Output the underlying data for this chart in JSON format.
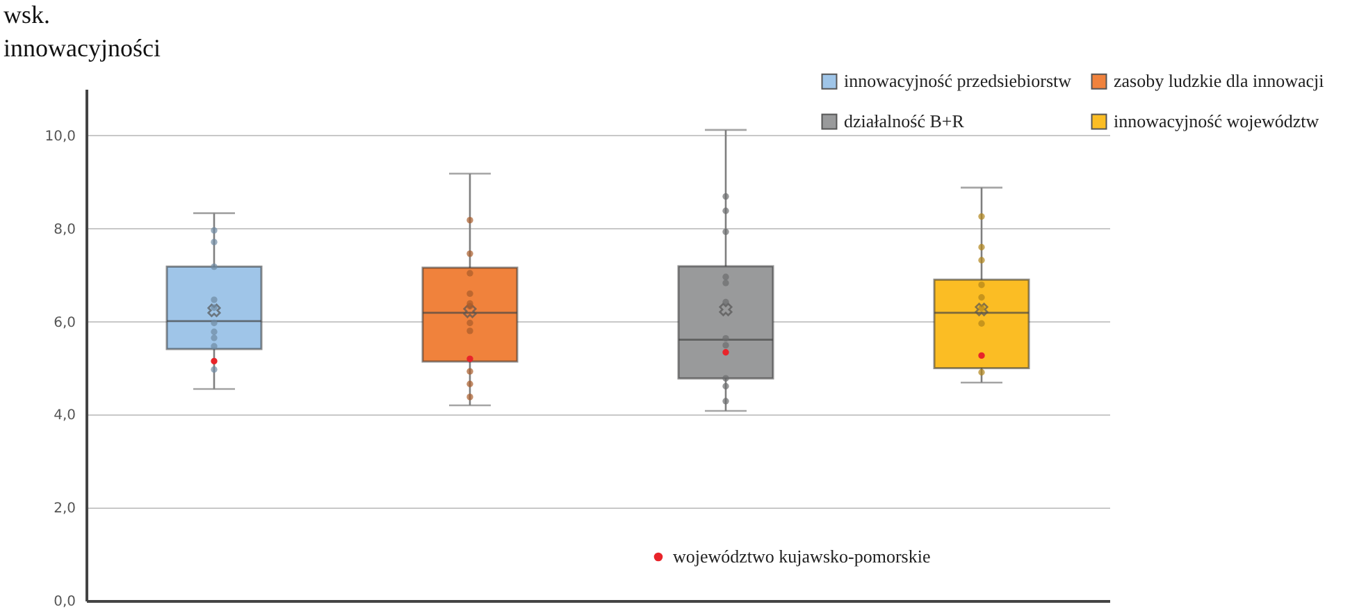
{
  "chart_data": {
    "type": "box",
    "ylabel": "wsk. innowacyjności",
    "categories": [
      null,
      null,
      null,
      null
    ],
    "series": [
      {
        "type": "box",
        "name": "innowacyjność przedsiebiorstw",
        "color": "#9fc5e8",
        "boxes": [
          {
            "low": 4.55,
            "q1": 5.41,
            "median": 6.01,
            "q3": 7.18,
            "high": 8.33,
            "mean": 6.24,
            "outliers": [
              7.96,
              7.71,
              7.18,
              6.47,
              6.3,
              5.97,
              5.78,
              5.65,
              5.47,
              4.97
            ]
          },
          null,
          null,
          null
        ]
      },
      {
        "type": "box",
        "name": "zasoby ludzkie dla innowacji",
        "color": "#f0823c",
        "boxes": [
          null,
          {
            "low": 4.2,
            "q1": 5.14,
            "median": 6.19,
            "q3": 7.16,
            "high": 9.18,
            "mean": 6.22,
            "outliers": [
              8.18,
              7.46,
              7.04,
              6.6,
              6.39,
              6.33,
              5.97,
              5.8,
              4.93,
              4.66,
              4.38
            ]
          },
          null,
          null
        ]
      },
      {
        "type": "box",
        "name": "działalność B+R",
        "color": "#999a9b",
        "boxes": [
          null,
          null,
          {
            "low": 4.08,
            "q1": 4.78,
            "median": 5.61,
            "q3": 7.19,
            "high": 10.12,
            "mean": 6.26,
            "outliers": [
              8.69,
              8.38,
              7.93,
              6.96,
              6.83,
              6.42,
              5.64,
              5.49,
              4.78,
              4.61,
              4.29
            ]
          },
          null
        ]
      },
      {
        "type": "box",
        "name": "innowacyjność województw",
        "color": "#fbbd24",
        "boxes": [
          null,
          null,
          null,
          {
            "low": 4.69,
            "q1": 5.0,
            "median": 6.19,
            "q3": 6.9,
            "high": 8.88,
            "mean": 6.26,
            "outliers": [
              8.26,
              7.6,
              7.32,
              6.79,
              6.52,
              6.29,
              5.96,
              4.91
            ]
          }
        ]
      },
      {
        "type": "scatter",
        "name": "województwo kujawsko-pomorskie",
        "color": "#e8242a",
        "values": [
          5.15,
          5.2,
          5.34,
          5.27
        ]
      }
    ],
    "ylim": [
      0,
      11
    ],
    "yticks": [
      {
        "value": 0,
        "label": "0,0"
      },
      {
        "value": 2,
        "label": "2,0"
      },
      {
        "value": 4,
        "label": "4,0"
      },
      {
        "value": 6,
        "label": "6,0"
      },
      {
        "value": 8,
        "label": "8,0"
      },
      {
        "value": 10,
        "label": "10,0"
      }
    ],
    "tick_labels": "y",
    "grid": "y",
    "legend": "top right",
    "marker": "circle"
  }
}
